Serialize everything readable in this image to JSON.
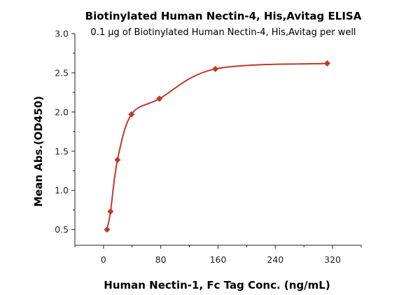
{
  "chart_data": {
    "type": "scatter",
    "title": "Biotinylated Human Nectin-4, His,Avitag ELISA",
    "subtitle": "0.1 μg of Biotinylated Human Nectin-4, His,Avitag per well",
    "xlabel": "Human Nectin-1, Fc Tag Conc. (ng/mL)",
    "ylabel": "Mean Abs.(OD450)",
    "xlim": [
      -40,
      360
    ],
    "ylim": [
      0.3,
      3.0
    ],
    "xticks": [
      0,
      80,
      160,
      240,
      320
    ],
    "yticks": [
      0.5,
      1.0,
      1.5,
      2.0,
      2.5,
      3.0
    ],
    "xtick_labels": [
      "0",
      "80",
      "160",
      "240",
      "320"
    ],
    "ytick_labels": [
      "0.5",
      "1.0",
      "1.5",
      "2.0",
      "2.5",
      "3.0"
    ],
    "grid": false,
    "points": [
      {
        "x": 4.88,
        "y": 0.5
      },
      {
        "x": 9.77,
        "y": 0.73
      },
      {
        "x": 19.53,
        "y": 1.39
      },
      {
        "x": 39.06,
        "y": 1.97
      },
      {
        "x": 78.13,
        "y": 2.17
      },
      {
        "x": 156.25,
        "y": 2.55
      },
      {
        "x": 312.5,
        "y": 2.62
      }
    ],
    "fit_curve": "smooth",
    "color": "#c0392b"
  }
}
